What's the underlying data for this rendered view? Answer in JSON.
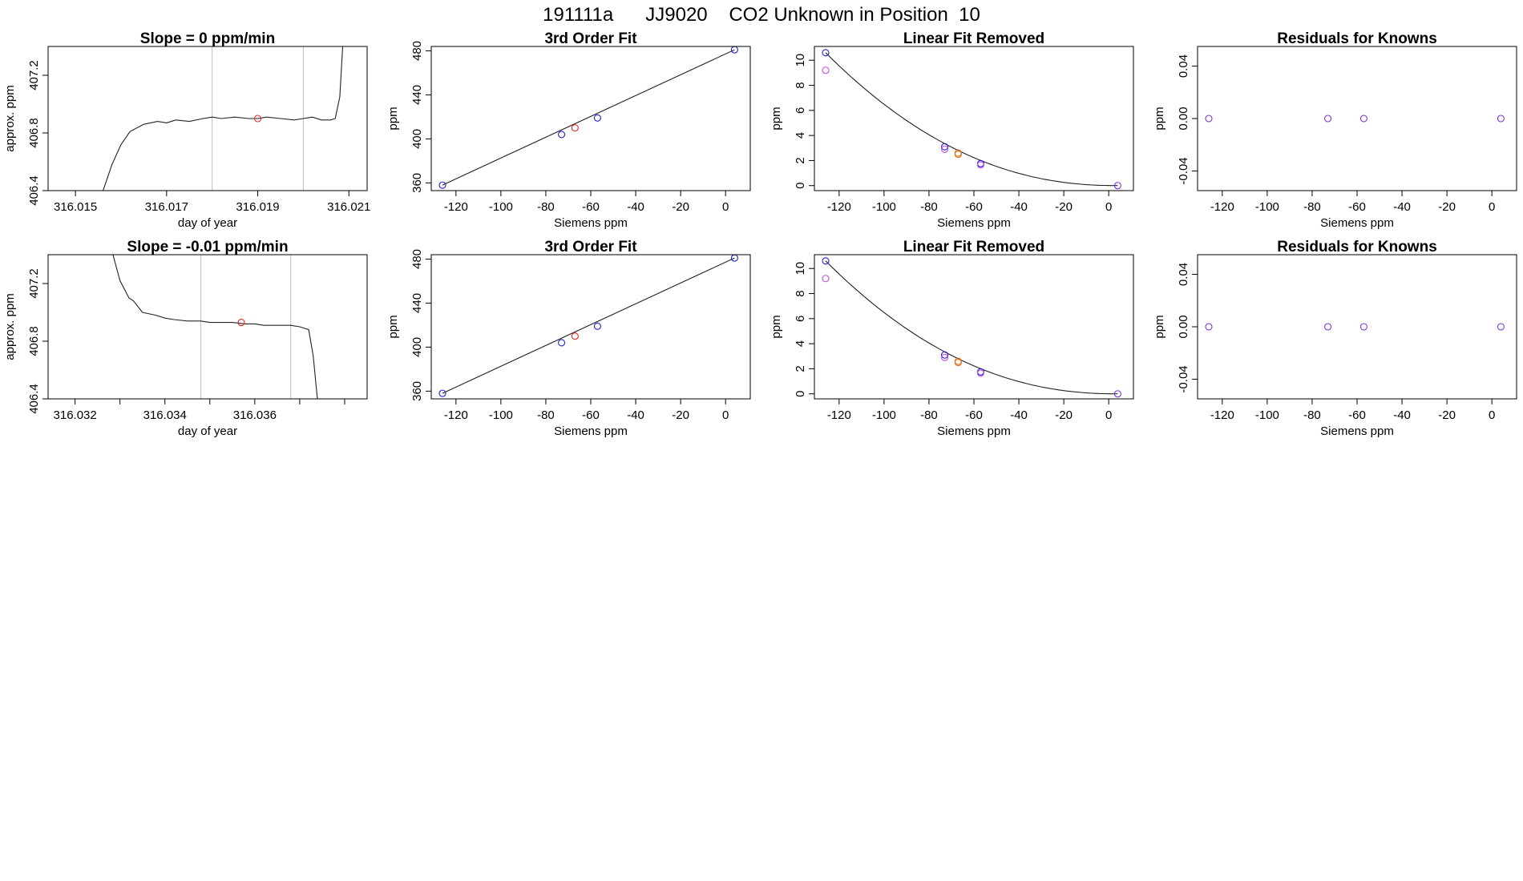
{
  "page_title": "191111a      JJ9020    CO2 Unknown in Position  10",
  "colors": {
    "blue": "#1f1fd6",
    "red": "#e0291f",
    "orange": "#e0741f",
    "magenta": "#c64ee0",
    "purple": "#7b2fd8",
    "line": "#222222",
    "vline": "#bdbdbd"
  },
  "chart_data": [
    {
      "type": "line",
      "title": "Slope =  0  ppm/min",
      "xlabel": "day of year",
      "ylabel": "approx. ppm",
      "xlim": [
        316.0144,
        316.0214
      ],
      "ylim": [
        406.4,
        407.4
      ],
      "xticks": [
        316.015,
        316.017,
        316.019,
        316.021
      ],
      "xtick_labels": [
        "316.015",
        "316.017",
        "316.019",
        "316.021"
      ],
      "yticks": [
        406.4,
        406.8,
        407.2
      ],
      "ytick_labels": [
        "406.4",
        "406.8",
        "407.2"
      ],
      "series": [
        {
          "x": [
            316.0155,
            316.0158,
            316.016,
            316.0162,
            316.0165,
            316.0168,
            316.017,
            316.0172,
            316.0175,
            316.0178,
            316.018,
            316.0182,
            316.0185,
            316.0188,
            316.019,
            316.0192,
            316.0195,
            316.0198,
            316.02,
            316.0202,
            316.0204,
            316.0206,
            316.0207,
            316.0208,
            316.0209
          ],
          "y": [
            406.3,
            406.58,
            406.72,
            406.81,
            406.86,
            406.88,
            406.87,
            406.89,
            406.88,
            406.9,
            406.91,
            406.9,
            406.91,
            406.9,
            406.9,
            406.91,
            406.9,
            406.89,
            406.9,
            406.91,
            406.89,
            406.89,
            406.9,
            407.05,
            407.6
          ]
        }
      ],
      "vlines": [
        316.018,
        316.02
      ],
      "points": [
        {
          "x": 316.019,
          "y": 406.9,
          "color": "red"
        }
      ]
    },
    {
      "type": "scatter",
      "title": "3rd Order Fit",
      "xlabel": "Siemens ppm",
      "ylabel": "ppm",
      "xlim": [
        -131,
        11
      ],
      "ylim": [
        353,
        484
      ],
      "xticks": [
        -120,
        -100,
        -80,
        -60,
        -40,
        -20,
        0
      ],
      "xtick_labels": [
        "-120",
        "-100",
        "-80",
        "-60",
        "-40",
        "-20",
        "0"
      ],
      "yticks": [
        360,
        400,
        440,
        480
      ],
      "ytick_labels": [
        "360",
        "400",
        "440",
        "480"
      ],
      "curve": {
        "x": [
          -126,
          4
        ],
        "y": [
          358,
          481
        ]
      },
      "points": [
        {
          "x": -126,
          "y": 358,
          "color": "blue"
        },
        {
          "x": -73,
          "y": 404,
          "color": "blue"
        },
        {
          "x": -67,
          "y": 410,
          "color": "red"
        },
        {
          "x": -57,
          "y": 419,
          "color": "blue"
        },
        {
          "x": 4,
          "y": 481,
          "color": "blue"
        }
      ]
    },
    {
      "type": "scatter",
      "title": "Linear Fit Removed",
      "xlabel": "Siemens ppm",
      "ylabel": "ppm",
      "xlim": [
        -131,
        11
      ],
      "ylim": [
        -0.4,
        11.1
      ],
      "xticks": [
        -120,
        -100,
        -80,
        -60,
        -40,
        -20,
        0
      ],
      "xtick_labels": [
        "-120",
        "-100",
        "-80",
        "-60",
        "-40",
        "-20",
        "0"
      ],
      "yticks": [
        0,
        2,
        4,
        6,
        8,
        10
      ],
      "ytick_labels": [
        "0",
        "2",
        "4",
        "6",
        "8",
        "10"
      ],
      "curve_fn": {
        "x0": 4,
        "x1": -126,
        "y1": 10.6,
        "power": 2.2
      },
      "points": [
        {
          "x": -126,
          "y": 10.6,
          "color": "blue"
        },
        {
          "x": -126,
          "y": 9.2,
          "color": "magenta"
        },
        {
          "x": -73,
          "y": 3.1,
          "color": "blue"
        },
        {
          "x": -73,
          "y": 2.9,
          "color": "magenta"
        },
        {
          "x": -67,
          "y": 2.6,
          "color": "orange"
        },
        {
          "x": -67,
          "y": 2.5,
          "color": "orange"
        },
        {
          "x": -57,
          "y": 1.75,
          "color": "blue"
        },
        {
          "x": -57,
          "y": 1.65,
          "color": "magenta"
        },
        {
          "x": 4,
          "y": 0,
          "color": "purple"
        }
      ]
    },
    {
      "type": "scatter",
      "title": "Residuals for Knowns",
      "xlabel": "Siemens ppm",
      "ylabel": "ppm",
      "xlim": [
        -131,
        11
      ],
      "ylim": [
        -0.055,
        0.055
      ],
      "xticks": [
        -120,
        -100,
        -80,
        -60,
        -40,
        -20,
        0
      ],
      "xtick_labels": [
        "-120",
        "-100",
        "-80",
        "-60",
        "-40",
        "-20",
        "0"
      ],
      "yticks": [
        -0.04,
        0,
        0.04
      ],
      "ytick_labels": [
        "-0.04",
        "0.00",
        "0.04"
      ],
      "points": [
        {
          "x": -126,
          "y": 0,
          "color": "purple"
        },
        {
          "x": -73,
          "y": 0,
          "color": "purple"
        },
        {
          "x": -57,
          "y": 0,
          "color": "purple"
        },
        {
          "x": 4,
          "y": 0,
          "color": "purple"
        }
      ]
    },
    {
      "type": "line",
      "title": "Slope =  -0.01  ppm/min",
      "xlabel": "day of year",
      "ylabel": "approx. ppm",
      "xlim": [
        316.0314,
        316.0385
      ],
      "ylim": [
        406.4,
        407.4
      ],
      "xticks": [
        316.032,
        316.033,
        316.034,
        316.035,
        316.036,
        316.037,
        316.038
      ],
      "xtick_labels": [
        "316.032",
        "",
        "316.034",
        "",
        "316.036",
        "",
        ""
      ],
      "yticks": [
        406.4,
        406.8,
        407.2
      ],
      "ytick_labels": [
        "406.4",
        "406.8",
        "407.2"
      ],
      "series": [
        {
          "x": [
            316.0328,
            316.033,
            316.0332,
            316.0333,
            316.0335,
            316.0338,
            316.034,
            316.0342,
            316.0345,
            316.0348,
            316.035,
            316.0352,
            316.0355,
            316.0358,
            316.036,
            316.0362,
            316.0365,
            316.0368,
            316.037,
            316.0372,
            316.0373,
            316.0374
          ],
          "y": [
            407.45,
            407.22,
            407.1,
            407.08,
            407.0,
            406.98,
            406.96,
            406.95,
            406.94,
            406.94,
            406.93,
            406.93,
            406.93,
            406.92,
            406.92,
            406.91,
            406.91,
            406.91,
            406.9,
            406.88,
            406.7,
            406.38
          ]
        }
      ],
      "vlines": [
        316.0348,
        316.0368
      ],
      "points": [
        {
          "x": 316.0357,
          "y": 406.93,
          "color": "red"
        }
      ]
    },
    {
      "type": "scatter",
      "title": "3rd Order Fit",
      "xlabel": "Siemens ppm",
      "ylabel": "ppm",
      "xlim": [
        -131,
        11
      ],
      "ylim": [
        353,
        484
      ],
      "xticks": [
        -120,
        -100,
        -80,
        -60,
        -40,
        -20,
        0
      ],
      "xtick_labels": [
        "-120",
        "-100",
        "-80",
        "-60",
        "-40",
        "-20",
        "0"
      ],
      "yticks": [
        360,
        400,
        440,
        480
      ],
      "ytick_labels": [
        "360",
        "400",
        "440",
        "480"
      ],
      "curve": {
        "x": [
          -126,
          4
        ],
        "y": [
          358,
          481
        ]
      },
      "points": [
        {
          "x": -126,
          "y": 358,
          "color": "blue"
        },
        {
          "x": -73,
          "y": 404,
          "color": "blue"
        },
        {
          "x": -67,
          "y": 410,
          "color": "red"
        },
        {
          "x": -57,
          "y": 419,
          "color": "blue"
        },
        {
          "x": 4,
          "y": 481,
          "color": "blue"
        }
      ]
    },
    {
      "type": "scatter",
      "title": "Linear Fit Removed",
      "xlabel": "Siemens ppm",
      "ylabel": "ppm",
      "xlim": [
        -131,
        11
      ],
      "ylim": [
        -0.4,
        11.1
      ],
      "xticks": [
        -120,
        -100,
        -80,
        -60,
        -40,
        -20,
        0
      ],
      "xtick_labels": [
        "-120",
        "-100",
        "-80",
        "-60",
        "-40",
        "-20",
        "0"
      ],
      "yticks": [
        0,
        2,
        4,
        6,
        8,
        10
      ],
      "ytick_labels": [
        "0",
        "2",
        "4",
        "6",
        "8",
        "10"
      ],
      "curve_fn": {
        "x0": 4,
        "x1": -126,
        "y1": 10.6,
        "power": 2.2
      },
      "points": [
        {
          "x": -126,
          "y": 10.6,
          "color": "blue"
        },
        {
          "x": -126,
          "y": 9.2,
          "color": "magenta"
        },
        {
          "x": -73,
          "y": 3.1,
          "color": "blue"
        },
        {
          "x": -73,
          "y": 2.9,
          "color": "magenta"
        },
        {
          "x": -67,
          "y": 2.6,
          "color": "orange"
        },
        {
          "x": -67,
          "y": 2.5,
          "color": "orange"
        },
        {
          "x": -57,
          "y": 1.75,
          "color": "blue"
        },
        {
          "x": -57,
          "y": 1.65,
          "color": "magenta"
        },
        {
          "x": 4,
          "y": 0,
          "color": "purple"
        }
      ]
    },
    {
      "type": "scatter",
      "title": "Residuals for Knowns",
      "xlabel": "Siemens ppm",
      "ylabel": "ppm",
      "xlim": [
        -131,
        11
      ],
      "ylim": [
        -0.055,
        0.055
      ],
      "xticks": [
        -120,
        -100,
        -80,
        -60,
        -40,
        -20,
        0
      ],
      "xtick_labels": [
        "-120",
        "-100",
        "-80",
        "-60",
        "-40",
        "-20",
        "0"
      ],
      "yticks": [
        -0.04,
        0,
        0.04
      ],
      "ytick_labels": [
        "-0.04",
        "0.00",
        "0.04"
      ],
      "points": [
        {
          "x": -126,
          "y": 0,
          "color": "purple"
        },
        {
          "x": -73,
          "y": 0,
          "color": "purple"
        },
        {
          "x": -57,
          "y": 0,
          "color": "purple"
        },
        {
          "x": 4,
          "y": 0,
          "color": "purple"
        }
      ]
    }
  ]
}
